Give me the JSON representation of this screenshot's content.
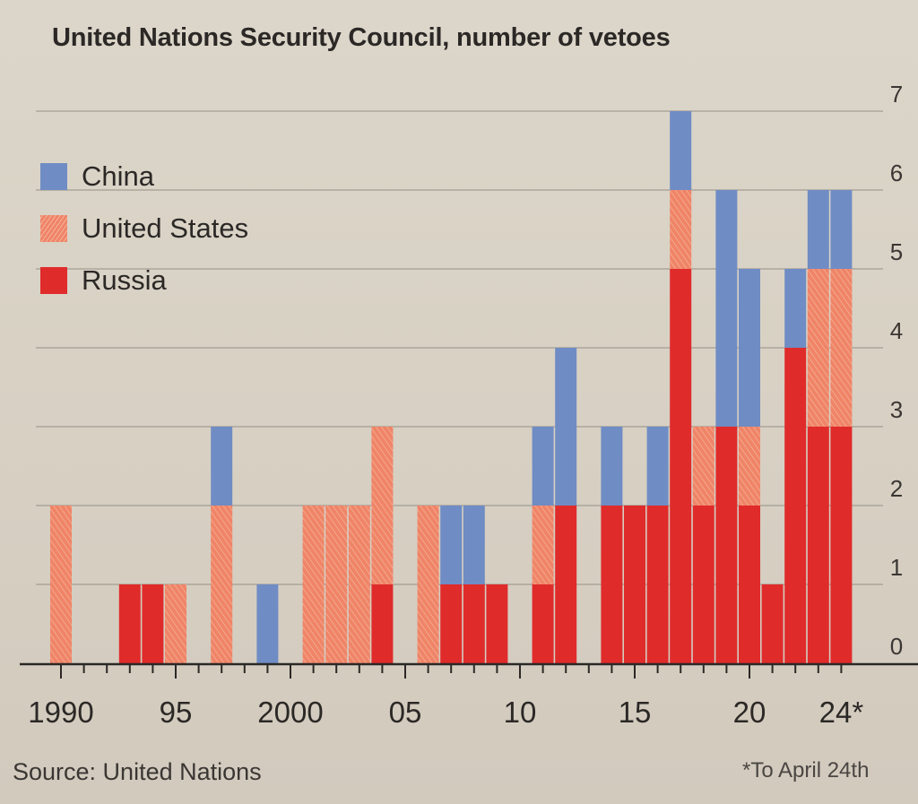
{
  "chart_data": {
    "type": "bar",
    "stacked": true,
    "title": "United Nations Security Council, number of vetoes",
    "xlabel": "",
    "ylabel": "",
    "ylim": [
      0,
      7
    ],
    "yticks": [
      0,
      1,
      2,
      3,
      4,
      5,
      6,
      7
    ],
    "y_axis_side": "right",
    "grid": true,
    "xticks": [
      {
        "year": 1990,
        "label": "1990"
      },
      {
        "year": 1995,
        "label": "95"
      },
      {
        "year": 2000,
        "label": "2000"
      },
      {
        "year": 2005,
        "label": "05"
      },
      {
        "year": 2010,
        "label": "10"
      },
      {
        "year": 2015,
        "label": "15"
      },
      {
        "year": 2020,
        "label": "20"
      },
      {
        "year": 2024,
        "label": "24*"
      }
    ],
    "categories": [
      1990,
      1991,
      1992,
      1993,
      1994,
      1995,
      1996,
      1997,
      1998,
      1999,
      2000,
      2001,
      2002,
      2003,
      2004,
      2005,
      2006,
      2007,
      2008,
      2009,
      2010,
      2011,
      2012,
      2013,
      2014,
      2015,
      2016,
      2017,
      2018,
      2019,
      2020,
      2021,
      2022,
      2023,
      2024
    ],
    "series": [
      {
        "name": "Russia",
        "color": "#e02b2b",
        "pattern": "solid",
        "values": [
          0,
          0,
          0,
          1,
          1,
          0,
          0,
          0,
          0,
          0,
          0,
          0,
          0,
          0,
          1,
          0,
          0,
          1,
          1,
          1,
          0,
          1,
          2,
          0,
          2,
          2,
          2,
          5,
          2,
          3,
          2,
          1,
          4,
          3,
          3
        ]
      },
      {
        "name": "United States",
        "color": "#ef8467",
        "pattern": "hatched",
        "values": [
          2,
          0,
          0,
          0,
          0,
          1,
          0,
          2,
          0,
          0,
          0,
          2,
          2,
          2,
          2,
          0,
          2,
          0,
          0,
          0,
          0,
          1,
          0,
          0,
          0,
          0,
          0,
          1,
          1,
          0,
          1,
          0,
          0,
          2,
          2
        ]
      },
      {
        "name": "China",
        "color": "#6f8cc4",
        "pattern": "solid",
        "values": [
          0,
          0,
          0,
          0,
          0,
          0,
          0,
          1,
          0,
          1,
          0,
          0,
          0,
          0,
          0,
          0,
          0,
          1,
          1,
          0,
          0,
          1,
          2,
          0,
          1,
          0,
          1,
          1,
          0,
          3,
          2,
          0,
          1,
          1,
          1
        ]
      }
    ],
    "legend": {
      "placement": "top-left",
      "order": [
        "China",
        "United States",
        "Russia"
      ]
    },
    "source": "Source: United Nations",
    "footnote": "*To April 24th"
  }
}
